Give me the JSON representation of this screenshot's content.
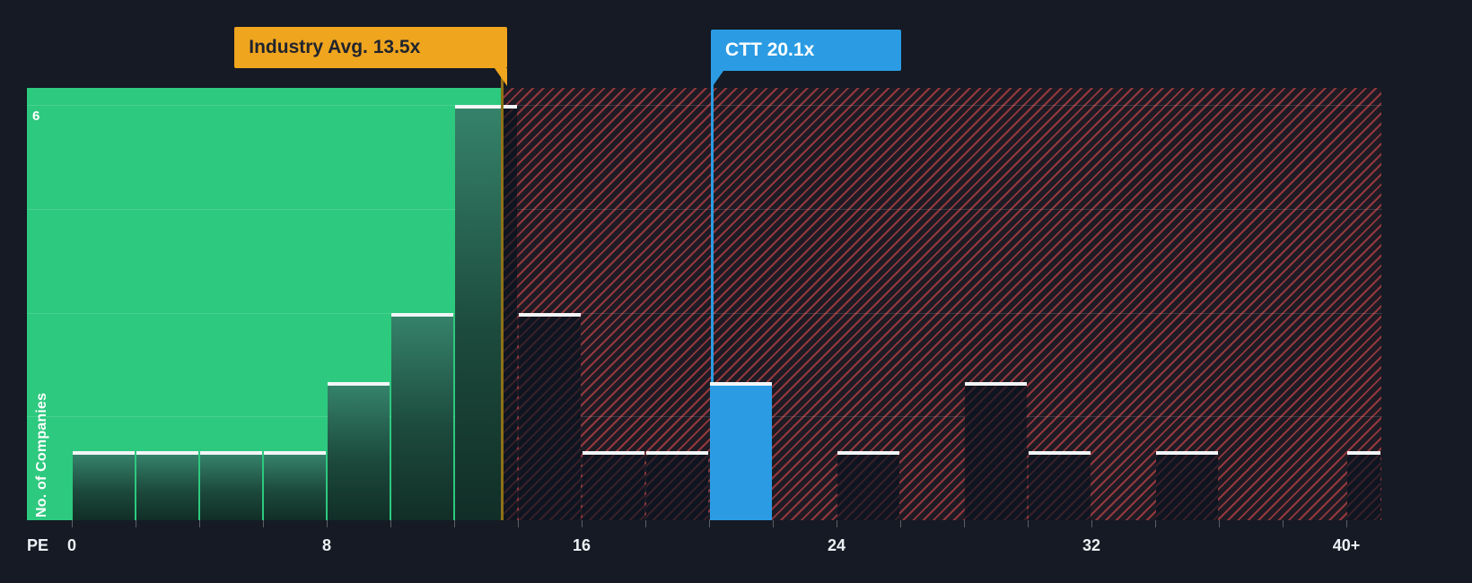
{
  "chart_data": {
    "type": "bar",
    "subtype": "histogram",
    "title": "",
    "xlabel": "PE",
    "ylabel": "No. of Companies",
    "xlim": [
      0,
      41.1
    ],
    "ylim": [
      0,
      6.25
    ],
    "grid_counts": [
      1.5,
      3,
      4.5,
      6
    ],
    "x_tick_labels": [
      {
        "value": 0,
        "label": "0"
      },
      {
        "value": 8,
        "label": "8"
      },
      {
        "value": 16,
        "label": "16"
      },
      {
        "value": 24,
        "label": "24"
      },
      {
        "value": 32,
        "label": "32"
      },
      {
        "value": 40,
        "label": "40+"
      }
    ],
    "y_tick_labels": [
      {
        "value": 6,
        "label": "6"
      }
    ],
    "bins": [
      {
        "from": 0,
        "to": 2,
        "count": 1
      },
      {
        "from": 2,
        "to": 4,
        "count": 1
      },
      {
        "from": 4,
        "to": 6,
        "count": 1
      },
      {
        "from": 6,
        "to": 8,
        "count": 1
      },
      {
        "from": 8,
        "to": 10,
        "count": 2
      },
      {
        "from": 10,
        "to": 12,
        "count": 3
      },
      {
        "from": 12,
        "to": 14,
        "count": 6
      },
      {
        "from": 14,
        "to": 16,
        "count": 3
      },
      {
        "from": 16,
        "to": 18,
        "count": 1
      },
      {
        "from": 18,
        "to": 20,
        "count": 1
      },
      {
        "from": 20,
        "to": 22,
        "count": 2,
        "highlight": true
      },
      {
        "from": 24,
        "to": 26,
        "count": 1
      },
      {
        "from": 28,
        "to": 30,
        "count": 2
      },
      {
        "from": 30,
        "to": 32,
        "count": 1
      },
      {
        "from": 34,
        "to": 36,
        "count": 1
      },
      {
        "from": 40,
        "to": 41.1,
        "count": 1
      }
    ],
    "markers": {
      "industry": {
        "label": "Industry Avg. 13.5x",
        "value": 13.5
      },
      "company": {
        "label": "CTT 20.1x",
        "value": 20.1
      }
    },
    "regions": [
      {
        "name": "below-industry-average",
        "from": 0,
        "to": 13.5,
        "style": "solid-green"
      },
      {
        "name": "above-industry-average",
        "from": 13.5,
        "to": 41.1,
        "style": "red-hatched"
      }
    ],
    "colors": {
      "background": "#151A24",
      "green": "#2DC97E",
      "red_hatch": "#DC4B4B",
      "company_blue": "#2B9CE4",
      "industry_amber": "#F0A51E",
      "industry_line": "#8F7117",
      "bar_cap": "#F2F5F7"
    }
  }
}
